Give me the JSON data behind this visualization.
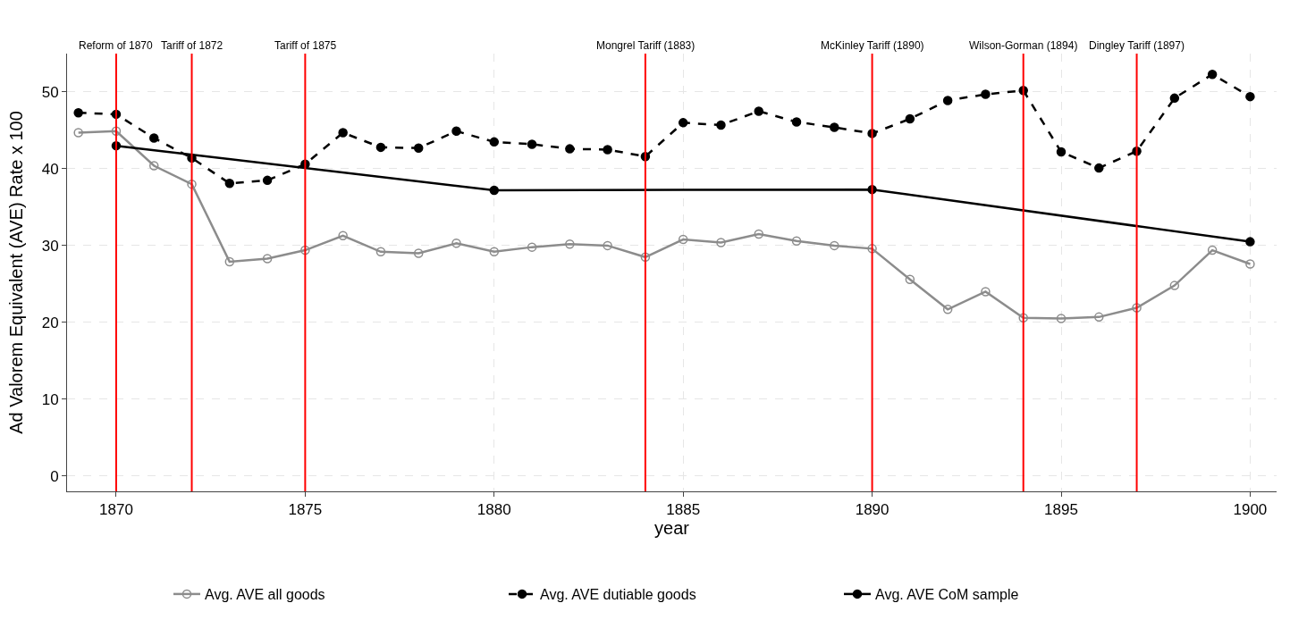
{
  "chart_data": {
    "type": "line",
    "xlabel": "year",
    "ylabel": "Ad Valorem Equivalent (AVE) Rate x 100",
    "xlim": [
      1868.7,
      1900.7
    ],
    "xticks": [
      1870,
      1875,
      1880,
      1885,
      1890,
      1895,
      1900
    ],
    "ylim": [
      -2,
      55
    ],
    "yticks": [
      0,
      10,
      20,
      30,
      40,
      50
    ],
    "grid": true,
    "legend": "bottom",
    "series": [
      {
        "name": "Avg. AVE all goods",
        "color": "#8c8c8c",
        "marker": "circle-open",
        "line_style": "solid",
        "x": [
          1869,
          1870,
          1871,
          1872,
          1873,
          1874,
          1875,
          1876,
          1877,
          1878,
          1879,
          1880,
          1881,
          1882,
          1883,
          1884,
          1885,
          1886,
          1887,
          1888,
          1889,
          1890,
          1891,
          1892,
          1893,
          1894,
          1895,
          1896,
          1897,
          1898,
          1899,
          1900
        ],
        "values": [
          44.7,
          44.9,
          40.4,
          38.0,
          27.9,
          28.3,
          29.4,
          31.3,
          29.2,
          29.0,
          30.3,
          29.2,
          29.8,
          30.2,
          30.0,
          28.5,
          30.8,
          30.4,
          31.5,
          30.6,
          30.0,
          29.6,
          25.6,
          21.7,
          24.0,
          20.6,
          20.5,
          20.7,
          21.9,
          24.8,
          29.4,
          27.6
        ]
      },
      {
        "name": "Avg. AVE dutiable goods",
        "color": "#000000",
        "marker": "circle",
        "line_style": "dashed",
        "x": [
          1869,
          1870,
          1871,
          1872,
          1873,
          1874,
          1875,
          1876,
          1877,
          1878,
          1879,
          1880,
          1881,
          1882,
          1883,
          1884,
          1885,
          1886,
          1887,
          1888,
          1889,
          1890,
          1891,
          1892,
          1893,
          1894,
          1895,
          1896,
          1897,
          1898,
          1899,
          1900
        ],
        "values": [
          47.3,
          47.1,
          44.0,
          41.4,
          38.1,
          38.5,
          40.6,
          44.7,
          42.8,
          42.7,
          44.9,
          43.5,
          43.2,
          42.6,
          42.5,
          41.6,
          46.0,
          45.7,
          47.5,
          46.1,
          45.4,
          44.6,
          46.5,
          48.9,
          49.7,
          50.2,
          42.2,
          40.1,
          42.3,
          49.2,
          52.3,
          49.4
        ]
      },
      {
        "name": "Avg. AVE CoM sample",
        "color": "#000000",
        "marker": "circle",
        "line_style": "solid",
        "x": [
          1870,
          1880,
          1890,
          1900
        ],
        "values": [
          43.0,
          37.2,
          37.3,
          30.5
        ]
      }
    ],
    "ref_lines": [
      {
        "axis": "x",
        "value": 1870,
        "label": "Reform of 1870",
        "color": "#ff0000"
      },
      {
        "axis": "x",
        "value": 1872,
        "label": "Tariff of 1872",
        "color": "#ff0000"
      },
      {
        "axis": "x",
        "value": 1875,
        "label": "Tariff of 1875",
        "color": "#ff0000"
      },
      {
        "axis": "x",
        "value": 1884,
        "label": "Mongrel Tariff (1883)",
        "color": "#ff0000"
      },
      {
        "axis": "x",
        "value": 1890,
        "label": "McKinley Tariff (1890)",
        "color": "#ff0000"
      },
      {
        "axis": "x",
        "value": 1894,
        "label": "Wilson-Gorman (1894)",
        "color": "#ff0000"
      },
      {
        "axis": "x",
        "value": 1897,
        "label": "Dingley Tariff (1897)",
        "color": "#ff0000"
      }
    ]
  }
}
